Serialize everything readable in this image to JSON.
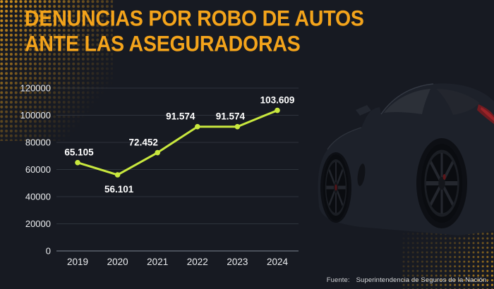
{
  "header": {
    "title_line1": "DENUNCIAS POR ROBO DE AUTOS",
    "title_line2": "ANTE LAS ASEGURADORAS"
  },
  "footer": {
    "source_label": "Fuente:",
    "source_text": "Superintendencia de Seguros de la Nación."
  },
  "colors": {
    "background": "#171a22",
    "title": "#f4a41b",
    "line": "#c9e83e",
    "grid": "#2e333c",
    "axis": "#5c636c",
    "tick_text": "#eceef0",
    "data_label": "#ffffff",
    "source_text": "#d8dadc",
    "halftone_dots": "#d9961c",
    "car_body": "#1d212a",
    "taillight_red": "#8a2026"
  },
  "chart_data": {
    "type": "line",
    "categories": [
      "2019",
      "2020",
      "2021",
      "2022",
      "2023",
      "2024"
    ],
    "values": [
      65105,
      56101,
      72452,
      91574,
      91574,
      103609
    ],
    "point_labels": [
      "65.105",
      "56.101",
      "72.452",
      "91.574",
      "91.574",
      "103.609"
    ],
    "label_position": [
      "above",
      "below",
      "above",
      "above",
      "above",
      "above"
    ],
    "label_dx": [
      2,
      2,
      -20,
      -24,
      -10,
      0
    ],
    "title": "Denuncias por robo de autos ante las aseguradoras",
    "xlabel": "",
    "ylabel": "",
    "ylim": [
      0,
      120000
    ],
    "yticks": [
      0,
      20000,
      40000,
      60000,
      80000,
      100000,
      120000
    ],
    "ytick_labels": [
      "0",
      "20000",
      "40000",
      "60000",
      "80000",
      "100000",
      "120000"
    ],
    "grid": "horizontal",
    "legend": "none"
  }
}
